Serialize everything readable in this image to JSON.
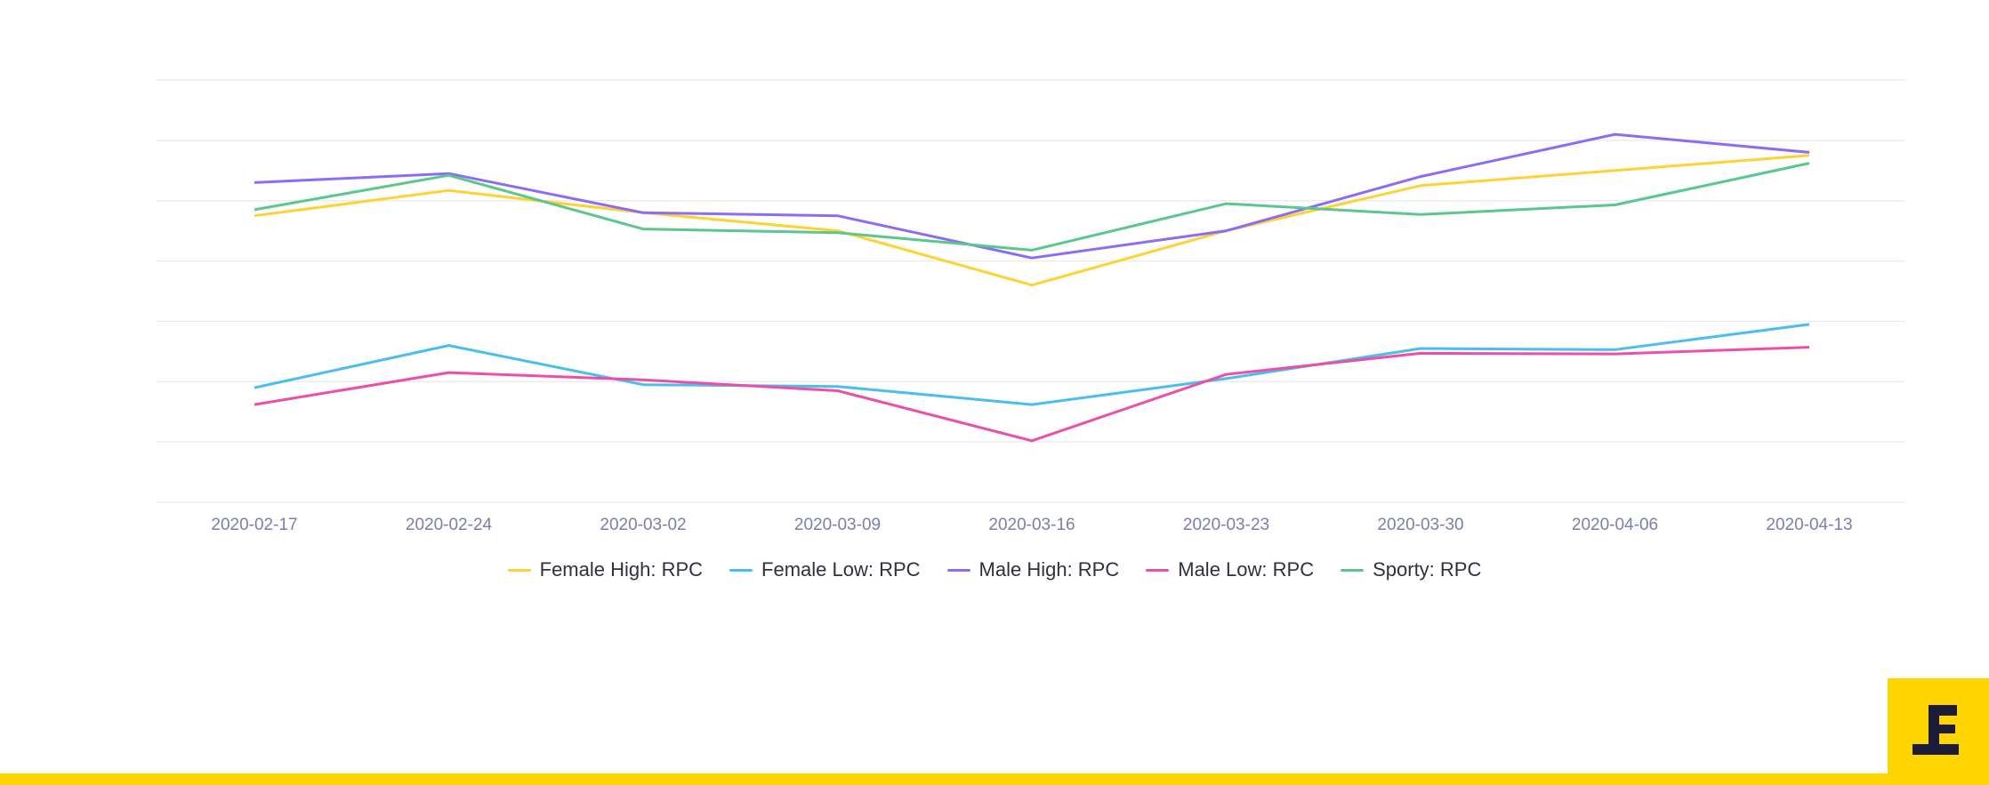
{
  "chart_data": {
    "type": "line",
    "categories": [
      "2020-02-17",
      "2020-02-24",
      "2020-03-02",
      "2020-03-09",
      "2020-03-16",
      "2020-03-23",
      "2020-03-30",
      "2020-04-06",
      "2020-04-13"
    ],
    "ylim": [
      0,
      7
    ],
    "grid": true,
    "legend_position": "bottom",
    "series": [
      {
        "name": "Female High: RPC",
        "color": "#ffd234",
        "values": [
          4.75,
          5.17,
          4.8,
          4.5,
          3.6,
          4.5,
          5.25,
          5.5,
          5.75
        ]
      },
      {
        "name": "Female Low: RPC",
        "color": "#4bbdf0",
        "values": [
          1.9,
          2.6,
          1.95,
          1.92,
          1.62,
          2.05,
          2.55,
          2.53,
          2.95
        ]
      },
      {
        "name": "Male High: RPC",
        "color": "#8c6cf7",
        "values": [
          5.3,
          5.45,
          4.8,
          4.75,
          4.05,
          4.5,
          5.4,
          6.1,
          5.8
        ]
      },
      {
        "name": "Male Low: RPC",
        "color": "#ec4fa8",
        "values": [
          1.62,
          2.15,
          2.03,
          1.85,
          1.02,
          2.12,
          2.47,
          2.46,
          2.57
        ]
      },
      {
        "name": "Sporty: RPC",
        "color": "#5ac88c",
        "values": [
          4.85,
          5.42,
          4.53,
          4.47,
          4.18,
          4.95,
          4.77,
          4.93,
          5.62
        ]
      }
    ]
  },
  "brand": {
    "accent": "#ffd500",
    "logo": "brand-logo-icon"
  }
}
